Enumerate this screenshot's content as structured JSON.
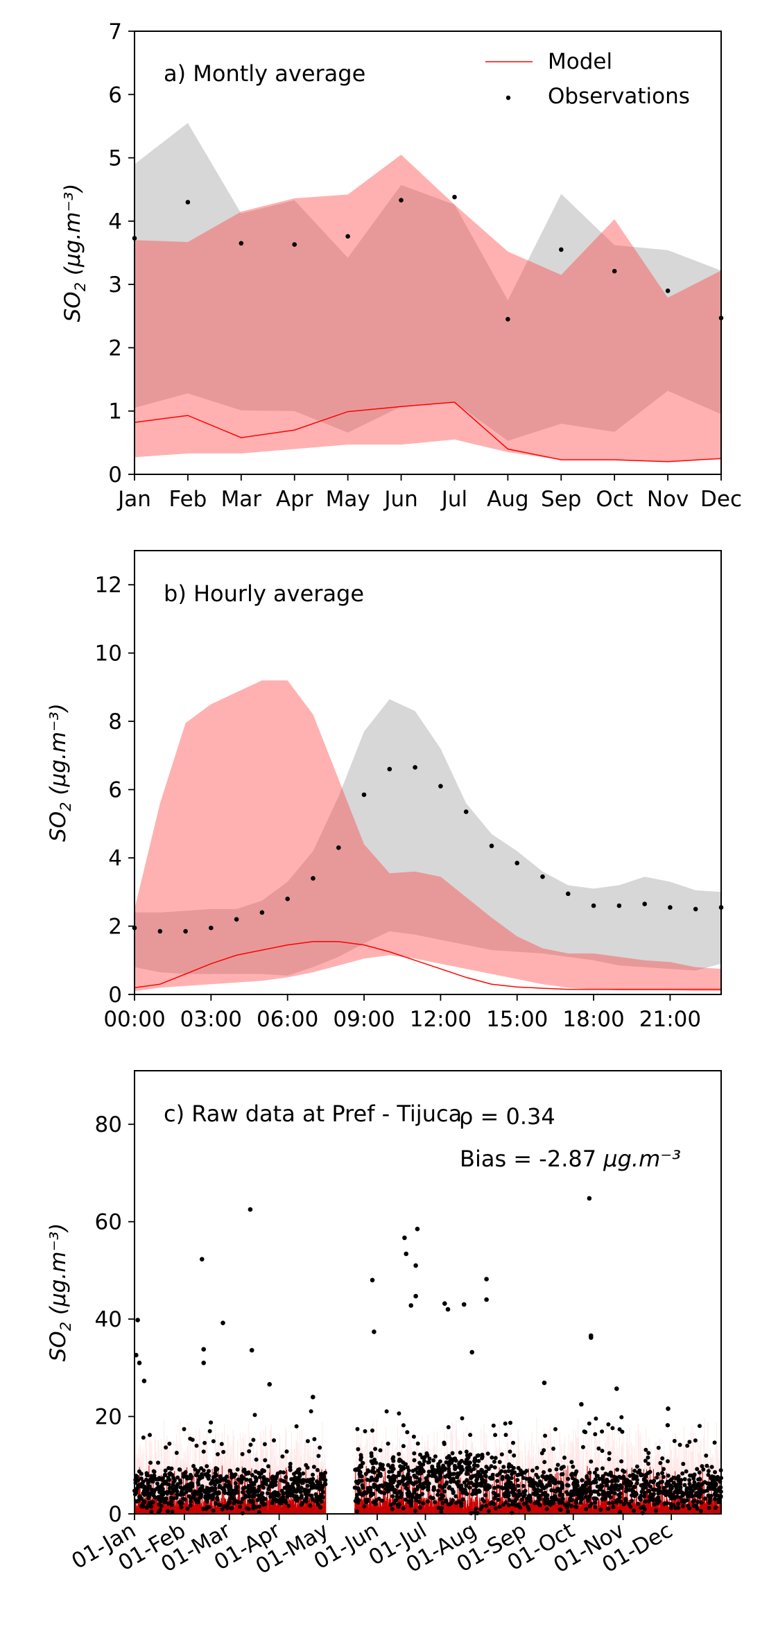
{
  "chart_data": [
    {
      "type": "line",
      "panel_label": "a) Montly average",
      "ylabel_base": "SO",
      "ylabel_sub": "2",
      "ylabel_unit": " (μg.m⁻³)",
      "xlim": [
        0,
        11
      ],
      "ylim": [
        0,
        7
      ],
      "yticks": [
        0,
        1,
        2,
        3,
        4,
        5,
        6,
        7
      ],
      "x_ticks": [
        0,
        1,
        2,
        3,
        4,
        5,
        6,
        7,
        8,
        9,
        10,
        11
      ],
      "x_tick_labels": [
        "Jan",
        "Feb",
        "Mar",
        "Apr",
        "May",
        "Jun",
        "Jul",
        "Aug",
        "Sep",
        "Oct",
        "Nov",
        "Dec"
      ],
      "legend": {
        "position": "top-right",
        "entries": [
          {
            "label": "Model",
            "kind": "line",
            "color": "#ff0000"
          },
          {
            "label": "Observations",
            "kind": "point",
            "color": "#000000"
          }
        ]
      },
      "series": [
        {
          "name": "Model",
          "x": [
            0,
            1,
            2,
            3,
            4,
            5,
            6,
            7,
            8,
            9,
            10,
            11
          ],
          "values": [
            0.82,
            0.93,
            0.58,
            0.7,
            0.99,
            1.07,
            1.14,
            0.4,
            0.23,
            0.23,
            0.2,
            0.25
          ]
        },
        {
          "name": "Observations",
          "x": [
            0,
            1,
            2,
            3,
            4,
            5,
            6,
            7,
            8,
            9,
            10,
            11
          ],
          "values": [
            3.73,
            4.3,
            3.65,
            3.63,
            3.76,
            4.33,
            4.38,
            2.45,
            3.55,
            3.21,
            2.9,
            2.47
          ]
        }
      ],
      "bands": [
        {
          "of": "Observations",
          "color": "#bfbfbf",
          "opacity": 0.62,
          "x": [
            0,
            1,
            2,
            3,
            4,
            5,
            6,
            7,
            8,
            9,
            10,
            11
          ],
          "upper": [
            4.9,
            5.55,
            4.12,
            4.33,
            3.42,
            4.57,
            4.26,
            2.75,
            4.43,
            3.62,
            3.54,
            3.22
          ],
          "lower": [
            1.05,
            1.28,
            1.01,
            1.0,
            0.66,
            1.07,
            1.14,
            0.53,
            0.8,
            0.67,
            1.32,
            0.95
          ]
        },
        {
          "of": "Model",
          "color": "#ff3b3b",
          "opacity": 0.4,
          "x": [
            0,
            1,
            2,
            3,
            4,
            5,
            6,
            7,
            8,
            9,
            10,
            11
          ],
          "upper": [
            3.7,
            3.67,
            4.15,
            4.36,
            4.42,
            5.05,
            4.26,
            3.52,
            3.15,
            4.03,
            2.79,
            3.22
          ],
          "lower": [
            0.27,
            0.33,
            0.33,
            0.4,
            0.47,
            0.47,
            0.55,
            0.35,
            0.23,
            0.23,
            0.2,
            0.25
          ]
        }
      ]
    },
    {
      "type": "line",
      "panel_label": "b) Hourly average",
      "ylabel_base": "SO",
      "ylabel_sub": "2",
      "ylabel_unit": " (μg.m⁻³)",
      "xlim": [
        0,
        23
      ],
      "ylim": [
        0,
        13
      ],
      "yticks": [
        0,
        2,
        4,
        6,
        8,
        10,
        12
      ],
      "x_ticks": [
        0,
        3,
        6,
        9,
        12,
        15,
        18,
        21
      ],
      "x_tick_labels": [
        "00:00",
        "03:00",
        "06:00",
        "09:00",
        "12:00",
        "15:00",
        "18:00",
        "21:00"
      ],
      "series": [
        {
          "name": "Model",
          "x": [
            0,
            1,
            2,
            3,
            4,
            5,
            6,
            7,
            8,
            9,
            10,
            11,
            12,
            13,
            14,
            15,
            16,
            17,
            18,
            19,
            20,
            21,
            22,
            23
          ],
          "values": [
            0.2,
            0.3,
            0.6,
            0.9,
            1.15,
            1.3,
            1.45,
            1.55,
            1.55,
            1.45,
            1.25,
            1.0,
            0.75,
            0.5,
            0.3,
            0.22,
            0.18,
            0.15,
            0.15,
            0.15,
            0.15,
            0.15,
            0.15,
            0.15
          ]
        },
        {
          "name": "Observations",
          "x": [
            0,
            1,
            2,
            3,
            4,
            5,
            6,
            7,
            8,
            9,
            10,
            11,
            12,
            13,
            14,
            15,
            16,
            17,
            18,
            19,
            20,
            21,
            22,
            23
          ],
          "values": [
            1.95,
            1.85,
            1.85,
            1.95,
            2.2,
            2.4,
            2.8,
            3.4,
            4.3,
            5.85,
            6.6,
            6.65,
            6.1,
            5.35,
            4.35,
            3.85,
            3.45,
            2.95,
            2.6,
            2.6,
            2.65,
            2.55,
            2.5,
            2.55
          ]
        }
      ],
      "bands": [
        {
          "of": "Observations",
          "color": "#bfbfbf",
          "opacity": 0.62,
          "x": [
            0,
            1,
            2,
            3,
            4,
            5,
            6,
            7,
            8,
            9,
            10,
            11,
            12,
            13,
            14,
            15,
            16,
            17,
            18,
            19,
            20,
            21,
            22,
            23
          ],
          "upper": [
            2.4,
            2.4,
            2.45,
            2.5,
            2.5,
            2.75,
            3.3,
            4.2,
            5.8,
            7.7,
            8.65,
            8.3,
            7.2,
            5.6,
            4.7,
            4.2,
            3.6,
            3.2,
            3.1,
            3.2,
            3.45,
            3.3,
            3.05,
            3.0
          ],
          "lower": [
            0.8,
            0.65,
            0.6,
            0.6,
            0.6,
            0.6,
            0.55,
            0.8,
            1.1,
            1.5,
            1.85,
            1.75,
            1.6,
            1.45,
            1.3,
            1.25,
            1.2,
            1.1,
            1.0,
            0.85,
            0.8,
            0.75,
            0.7,
            0.9
          ]
        },
        {
          "of": "Model",
          "color": "#ff3b3b",
          "opacity": 0.4,
          "x": [
            0,
            1,
            2,
            3,
            4,
            5,
            6,
            7,
            8,
            9,
            10,
            11,
            12,
            13,
            14,
            15,
            16,
            17,
            18,
            19,
            20,
            21,
            22,
            23
          ],
          "upper": [
            2.5,
            5.6,
            7.95,
            8.5,
            8.85,
            9.2,
            9.2,
            8.2,
            6.3,
            4.4,
            3.55,
            3.6,
            3.45,
            2.85,
            2.25,
            1.7,
            1.35,
            1.2,
            1.2,
            1.1,
            1.0,
            0.95,
            0.8,
            0.75
          ],
          "lower": [
            0.1,
            0.2,
            0.25,
            0.3,
            0.35,
            0.4,
            0.5,
            0.65,
            0.85,
            1.05,
            1.15,
            1.05,
            0.9,
            0.75,
            0.6,
            0.45,
            0.3,
            0.2,
            0.15,
            0.12,
            0.12,
            0.12,
            0.1,
            0.1
          ]
        }
      ]
    },
    {
      "type": "scatter",
      "panel_label": "c) Raw data at Pref - Tijuca",
      "stat_text": "ρ = 0.34",
      "bias_text": "Bias = -2.87 ",
      "bias_unit": "μg.m⁻³",
      "ylabel_base": "SO",
      "ylabel_sub": "2",
      "ylabel_unit": " (μg.m⁻³)",
      "xlim": [
        0,
        365
      ],
      "ylim": [
        0,
        91
      ],
      "yticks": [
        0,
        20,
        40,
        60,
        80
      ],
      "x_ticks": [
        0,
        31,
        59,
        90,
        120,
        151,
        181,
        212,
        243,
        273,
        304,
        334
      ],
      "x_tick_labels": [
        "01-Jan",
        "01-Feb",
        "01-Mar",
        "01-Apr",
        "01-May",
        "01-Jun",
        "01-Jul",
        "01-Aug",
        "01-Sep",
        "01-Oct",
        "01-Nov",
        "01-Dec"
      ],
      "model_color": "#cc0000",
      "observation_color": "#000000",
      "observations_notable": [
        {
          "x": 2,
          "y": 39.8
        },
        {
          "x": 1,
          "y": 32.6
        },
        {
          "x": 3,
          "y": 31.0
        },
        {
          "x": 6,
          "y": 27.3
        },
        {
          "x": 42,
          "y": 52.3
        },
        {
          "x": 43,
          "y": 33.8
        },
        {
          "x": 43,
          "y": 31.0
        },
        {
          "x": 55,
          "y": 39.2
        },
        {
          "x": 72,
          "y": 62.5
        },
        {
          "x": 73,
          "y": 33.6
        },
        {
          "x": 84,
          "y": 26.6
        },
        {
          "x": 111,
          "y": 24.0
        },
        {
          "x": 148,
          "y": 48.0
        },
        {
          "x": 149,
          "y": 37.4
        },
        {
          "x": 168,
          "y": 56.7
        },
        {
          "x": 169,
          "y": 53.4
        },
        {
          "x": 176,
          "y": 58.5
        },
        {
          "x": 175,
          "y": 51.0
        },
        {
          "x": 175,
          "y": 44.7
        },
        {
          "x": 172,
          "y": 42.8
        },
        {
          "x": 193,
          "y": 43.2
        },
        {
          "x": 195,
          "y": 42.0
        },
        {
          "x": 205,
          "y": 43.0
        },
        {
          "x": 219,
          "y": 48.2
        },
        {
          "x": 219,
          "y": 44.0
        },
        {
          "x": 210,
          "y": 33.2
        },
        {
          "x": 255,
          "y": 26.9
        },
        {
          "x": 278,
          "y": 22.5
        },
        {
          "x": 283,
          "y": 64.8
        },
        {
          "x": 284,
          "y": 36.6
        },
        {
          "x": 284,
          "y": 36.2
        },
        {
          "x": 300,
          "y": 25.7
        },
        {
          "x": 332,
          "y": 21.6
        }
      ]
    }
  ]
}
